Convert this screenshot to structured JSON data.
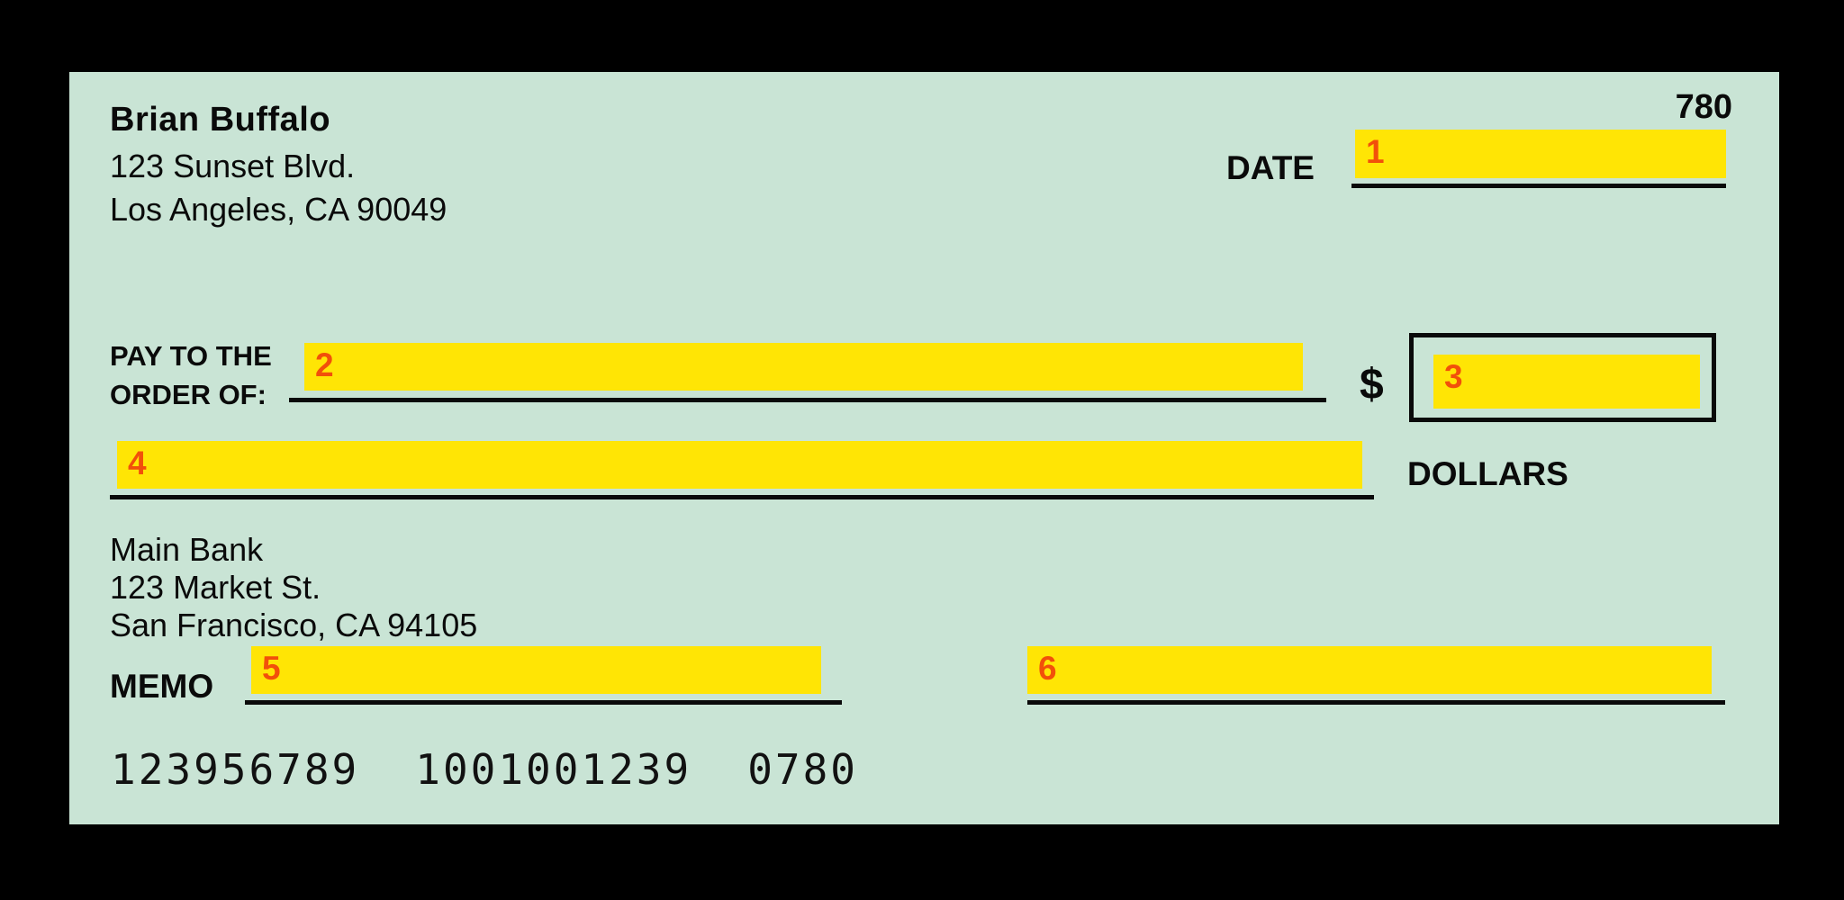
{
  "check": {
    "number": "780",
    "payer": {
      "name": "Brian Buffalo",
      "address_line1": "123 Sunset Blvd.",
      "address_line2": "Los Angeles, CA 90049"
    },
    "date": {
      "label": "DATE",
      "marker": "1"
    },
    "payee": {
      "label_line1": "PAY TO THE",
      "label_line2": "ORDER OF:",
      "marker": "2"
    },
    "amount": {
      "currency_symbol": "$",
      "marker": "3"
    },
    "amount_words": {
      "marker": "4",
      "unit_label": "DOLLARS"
    },
    "bank": {
      "name": "Main Bank",
      "address_line1": "123 Market St.",
      "address_line2": "San Francisco, CA 94105"
    },
    "memo": {
      "label": "MEMO",
      "marker": "5"
    },
    "signature": {
      "marker": "6"
    },
    "micr": {
      "routing_number": "123956789",
      "account_number": "1001001239",
      "check_number": "0780"
    },
    "colors": {
      "page_background": "#000000",
      "check_background": "#C9E4D5",
      "highlight_yellow": "#FFE505",
      "marker_orange": "#F2500A",
      "ink_black": "#0A0A0A"
    }
  }
}
